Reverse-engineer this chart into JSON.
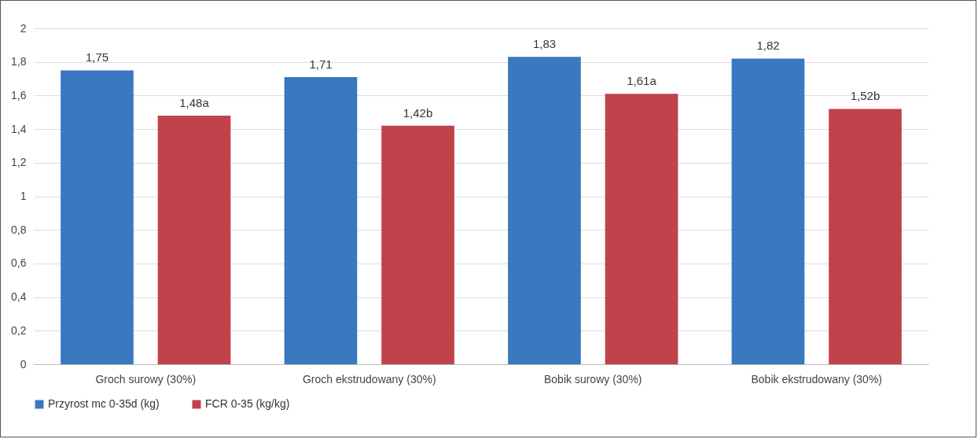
{
  "chart_data": {
    "type": "bar",
    "categories": [
      "Groch surowy (30%)",
      "Groch ekstrudowany (30%)",
      "Bobik surowy (30%)",
      "Bobik ekstrudowany (30%)"
    ],
    "series": [
      {
        "name": "Przyrost mc 0-35d (kg)",
        "color": "#3a78c0",
        "values": [
          1.75,
          1.71,
          1.83,
          1.82
        ],
        "value_labels": [
          "1,75",
          "1,71",
          "1,83",
          "1,82"
        ]
      },
      {
        "name": "FCR 0-35 (kg/kg)",
        "color": "#c0424a",
        "values": [
          1.48,
          1.42,
          1.61,
          1.52
        ],
        "value_labels": [
          "1,48a",
          "1,42b",
          "1,61a",
          "1,52b"
        ]
      }
    ],
    "ylim": [
      0,
      2
    ],
    "yticks": [
      0,
      {
        "value": 0.2,
        "label": "0,2"
      },
      {
        "value": 0.4,
        "label": "0,4"
      },
      {
        "value": 0.6,
        "label": "0,6"
      },
      {
        "value": 0.8,
        "label": "0,8"
      },
      1,
      {
        "value": 1.2,
        "label": "1,2"
      },
      {
        "value": 1.4,
        "label": "1,4"
      },
      {
        "value": 1.6,
        "label": "1,6"
      },
      {
        "value": 1.8,
        "label": "1,8"
      },
      2
    ],
    "grid": "y",
    "legend": "bottom"
  }
}
